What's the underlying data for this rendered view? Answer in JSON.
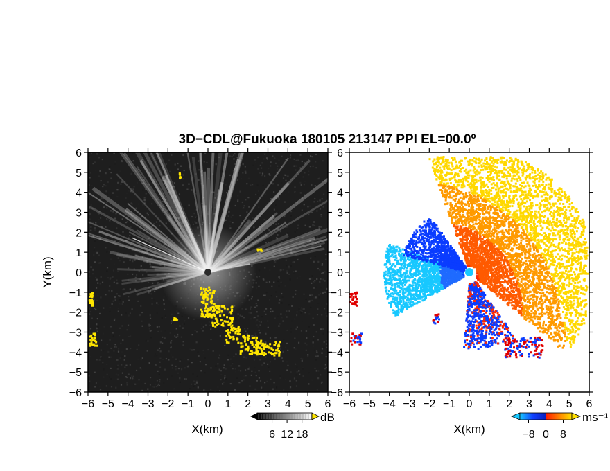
{
  "title": "3D−CDL@Fukuoka 180105 213147 PPI EL=00.0º",
  "chart_data": [
    {
      "type": "heatmap",
      "panel": "reflectivity-snr",
      "xlabel": "X(km)",
      "ylabel": "Y(km)",
      "xlim": [
        -6,
        6
      ],
      "ylim": [
        -6,
        6
      ],
      "xticks": [
        "−6",
        "−5",
        "−4",
        "−3",
        "−2",
        "−1",
        "0",
        "1",
        "2",
        "3",
        "4",
        "5",
        "6"
      ],
      "yticks": [
        "−6",
        "−5",
        "−4",
        "−3",
        "−2",
        "−1",
        "0",
        "1",
        "2",
        "3",
        "4",
        "5",
        "6"
      ],
      "colorbar": {
        "unit": "dB",
        "ticks": [
          "6",
          "12",
          "18"
        ],
        "range": [
          0,
          22
        ]
      },
      "colors": {
        "background": "#1e1e1e",
        "beam": "#d8d8d8",
        "highlight": "#ffe600"
      },
      "highlight_regions_km": [
        {
          "x": -1.4,
          "y": 4.8
        },
        {
          "x": 2.6,
          "y": 1.1
        },
        {
          "x": 0.3,
          "y": -1.6
        },
        {
          "x": 1.5,
          "y": -2.8
        },
        {
          "x": 2.5,
          "y": -3.8
        },
        {
          "x": -5.9,
          "y": -1.3
        },
        {
          "x": -5.6,
          "y": -3.4
        }
      ]
    },
    {
      "type": "heatmap",
      "panel": "doppler-velocity",
      "xlabel": "X(km)",
      "xlim": [
        -6,
        6
      ],
      "ylim": [
        -6,
        6
      ],
      "xticks": [
        "−6",
        "−5",
        "−4",
        "−3",
        "−2",
        "−1",
        "0",
        "1",
        "2",
        "3",
        "4",
        "5",
        "6"
      ],
      "yticks": [
        "−6",
        "−5",
        "−4",
        "−3",
        "−2",
        "−1",
        "0",
        "1",
        "2",
        "3",
        "4",
        "5",
        "6"
      ],
      "colorbar": {
        "unit": "ms⁻¹",
        "ticks": [
          "−8",
          "0",
          "8"
        ],
        "range": [
          -12,
          12
        ]
      },
      "colors": {
        "background": "#ffffff",
        "toward": "#0a3cff",
        "toward_strong": "#18c8ff",
        "away": "#ff3a00",
        "away_strong": "#ffd800",
        "edge": "#e00000",
        "center": "#18c8ff"
      }
    }
  ]
}
